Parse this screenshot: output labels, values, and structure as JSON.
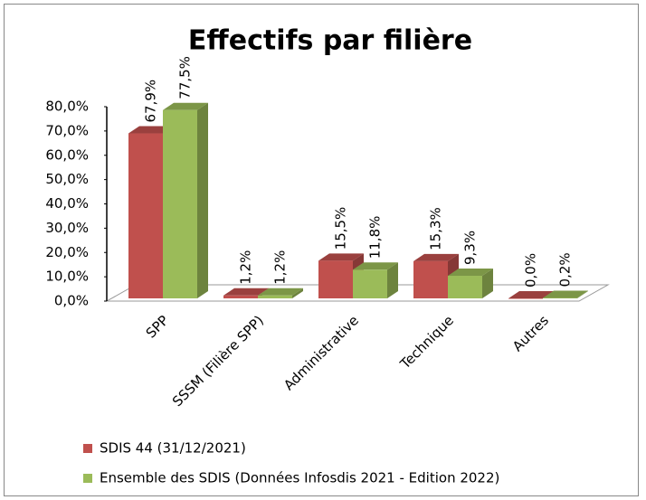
{
  "chart_data": {
    "type": "bar3d",
    "title": "Effectifs par filière",
    "categories": [
      "SPP",
      "SSSM (Filière SPP)",
      "Administrative",
      "Technique",
      "Autres"
    ],
    "series": [
      {
        "name": "SDIS 44 (31/12/2021)",
        "color": "#c0504d",
        "values": [
          67.9,
          1.2,
          15.5,
          15.3,
          0.0
        ],
        "value_labels": [
          "67,9%",
          "1,2%",
          "15,5%",
          "15,3%",
          "0,0%"
        ]
      },
      {
        "name": "Ensemble des SDIS (Données Infosdis 2021 - Edition 2022)",
        "color": "#9bbb59",
        "values": [
          77.5,
          1.2,
          11.8,
          9.3,
          0.2
        ],
        "value_labels": [
          "77,5%",
          "1,2%",
          "11,8%",
          "9,3%",
          "0,2%"
        ]
      }
    ],
    "ylim": [
      0,
      80
    ],
    "yticks": [
      {
        "value": 0,
        "label": "0,0%"
      },
      {
        "value": 10,
        "label": "10,0%"
      },
      {
        "value": 20,
        "label": "20,0%"
      },
      {
        "value": 30,
        "label": "30,0%"
      },
      {
        "value": 40,
        "label": "40,0%"
      },
      {
        "value": 50,
        "label": "50,0%"
      },
      {
        "value": 60,
        "label": "60,0%"
      },
      {
        "value": 70,
        "label": "70,0%"
      },
      {
        "value": 80,
        "label": "80,0%"
      }
    ],
    "grid": false,
    "legend": "bottom"
  }
}
